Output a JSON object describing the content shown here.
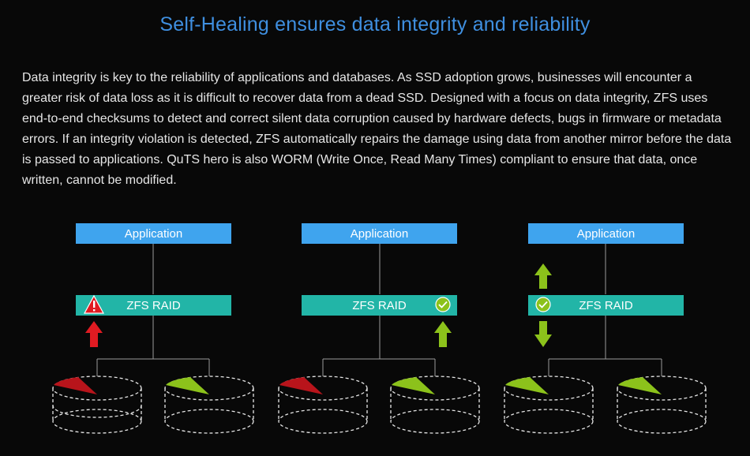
{
  "title": "Self-Healing ensures data integrity and reliability",
  "description": "Data integrity is key to the reliability of applications and databases. As SSD adoption grows, businesses will encounter a greater risk of data loss as it is difficult to recover data from a dead SSD. Designed with a focus on data integrity, ZFS uses end-to-end checksums to detect and correct silent data corruption caused by hardware defects, bugs in firmware or metadata errors. If an integrity violation is detected, ZFS automatically repairs the damage using data from another mirror before the data is passed to applications. QuTS hero is also WORM (Write Once, Read Many Times) compliant to ensure that data, once written, cannot be modified.",
  "colors": {
    "application_box": "#3fa4ee",
    "zfs_box": "#22b5a7",
    "error_red": "#e01b22",
    "ok_green": "#8cc21b",
    "title_blue": "#3f8fe0"
  },
  "panels": [
    {
      "application_label": "Application",
      "zfs_label": "ZFS RAID",
      "status_icon": "warning-icon",
      "arrows": [
        "red-up-arrow-icon"
      ],
      "disks": [
        "corrupted",
        "healthy"
      ]
    },
    {
      "application_label": "Application",
      "zfs_label": "ZFS RAID",
      "status_icon": "checkmark-icon",
      "arrows": [
        "green-up-arrow-icon"
      ],
      "disks": [
        "corrupted",
        "healthy"
      ]
    },
    {
      "application_label": "Application",
      "zfs_label": "ZFS RAID",
      "status_icon": "checkmark-icon",
      "arrows": [
        "green-up-arrow-icon",
        "green-down-arrow-icon"
      ],
      "disks": [
        "healthy",
        "healthy"
      ]
    }
  ]
}
